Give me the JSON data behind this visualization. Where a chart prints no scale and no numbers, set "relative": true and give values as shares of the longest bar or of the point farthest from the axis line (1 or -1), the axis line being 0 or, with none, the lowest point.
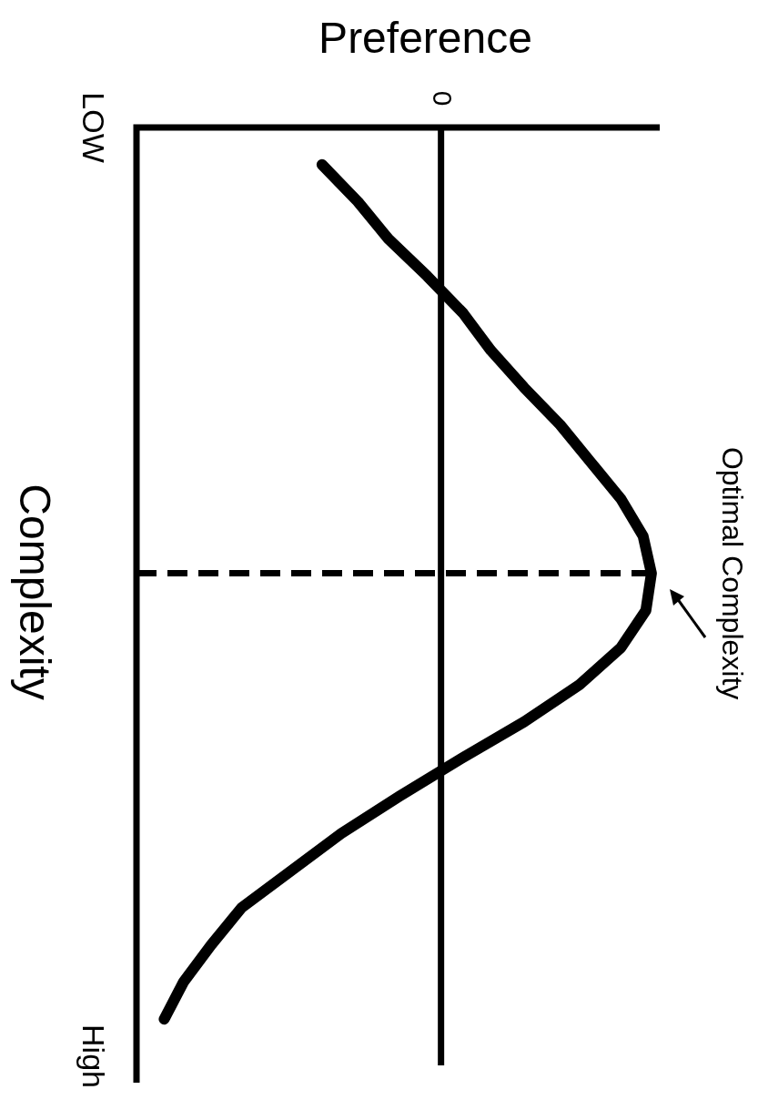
{
  "chart_data": {
    "type": "line",
    "orientation": "horizontal",
    "relative": true,
    "xlabel": "Preference",
    "ylabel": "Complexity",
    "categories": [
      "LOW",
      null,
      null,
      null,
      null,
      null,
      null,
      null,
      null,
      null,
      null,
      null,
      null,
      null,
      null,
      null,
      null,
      null,
      null,
      null,
      null,
      null,
      null,
      null,
      null,
      "High"
    ],
    "series": [
      {
        "color": "#000000",
        "values": [
          null,
          -0.43,
          -0.3,
          -0.19,
          -0.05,
          0.08,
          0.18,
          0.3,
          0.43,
          0.54,
          0.65,
          0.73,
          0.76,
          0.74,
          0.65,
          0.5,
          0.3,
          0.07,
          -0.15,
          -0.36,
          -0.54,
          -0.72,
          -0.83,
          -0.93,
          -1,
          null
        ]
      }
    ],
    "ref_lines": [
      {
        "axis": "x",
        "value": 0,
        "label": "0",
        "color": "#000000"
      }
    ],
    "annotations": [
      {
        "text": "Optimal Complexity",
        "x": 0.76
      }
    ],
    "marker": "none",
    "line_style": "solid",
    "legend": false
  }
}
